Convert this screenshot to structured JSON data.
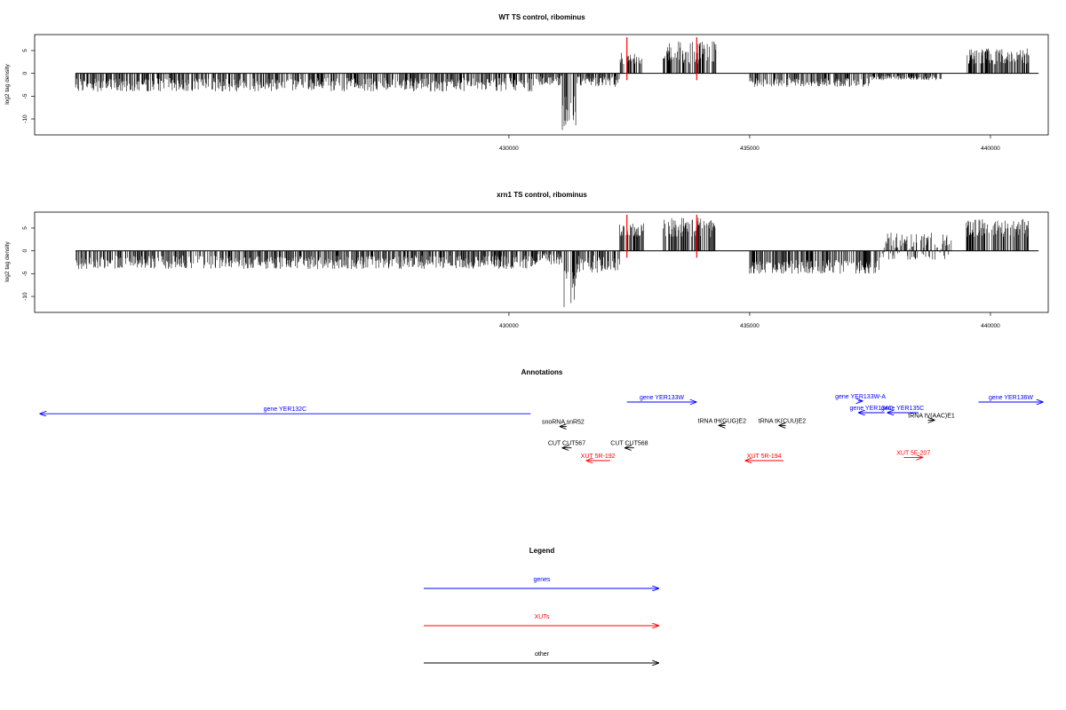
{
  "chart_data": [
    {
      "type": "bar",
      "title": "WT TS control, ribominus",
      "ylabel": "log2 tag density",
      "xlabel": "",
      "xlim": [
        420150,
        441200
      ],
      "ylim": [
        -13.5,
        8.5
      ],
      "x_ticks": [
        430000,
        435000,
        440000
      ],
      "x_tick_labels": [
        "430000",
        "435000",
        "440000"
      ],
      "y_ticks": [
        5,
        0,
        -5,
        -10
      ],
      "y_tick_labels": [
        "5",
        "0",
        "-5",
        "-10"
      ],
      "grid": false,
      "markers": [
        {
          "x": 432450,
          "color": "#ff0000"
        },
        {
          "x": 433900,
          "color": "#ff0000"
        }
      ],
      "density": {
        "x_range": [
          421000,
          441000
        ],
        "segments": [
          {
            "x0": 421000,
            "x1": 430500,
            "min": -4,
            "max": -1
          },
          {
            "x0": 430500,
            "x1": 431100,
            "min": -3,
            "max": -0.5
          },
          {
            "x0": 431100,
            "x1": 431400,
            "min": -12.5,
            "max": -4
          },
          {
            "x0": 431400,
            "x1": 432300,
            "min": -3,
            "max": -0.5
          },
          {
            "x0": 432300,
            "x1": 432800,
            "min": 2,
            "max": 4.5
          },
          {
            "x0": 433200,
            "x1": 434300,
            "min": 2,
            "max": 7
          },
          {
            "x0": 435000,
            "x1": 437500,
            "min": -3,
            "max": -1
          },
          {
            "x0": 437500,
            "x1": 439000,
            "min": -1.5,
            "max": -0.5
          },
          {
            "x0": 439500,
            "x1": 440800,
            "min": 2,
            "max": 5.5
          }
        ]
      }
    },
    {
      "type": "bar",
      "title": "xrn1 TS control, ribominus",
      "ylabel": "log2 tag density",
      "xlabel": "",
      "xlim": [
        420150,
        441200
      ],
      "ylim": [
        -13.5,
        8.5
      ],
      "x_ticks": [
        430000,
        435000,
        440000
      ],
      "x_tick_labels": [
        "430000",
        "435000",
        "440000"
      ],
      "y_ticks": [
        5,
        0,
        -5,
        -10
      ],
      "y_tick_labels": [
        "5",
        "0",
        "-5",
        "-10"
      ],
      "grid": false,
      "markers": [
        {
          "x": 432450,
          "color": "#ff0000"
        },
        {
          "x": 433900,
          "color": "#ff0000"
        }
      ],
      "density": {
        "x_range": [
          421000,
          441000
        ],
        "segments": [
          {
            "x0": 421000,
            "x1": 430500,
            "min": -4,
            "max": -1
          },
          {
            "x0": 430500,
            "x1": 431100,
            "min": -3,
            "max": -0.5
          },
          {
            "x0": 431100,
            "x1": 431400,
            "min": -12.5,
            "max": -4
          },
          {
            "x0": 431400,
            "x1": 432300,
            "min": -5,
            "max": -1
          },
          {
            "x0": 432300,
            "x1": 432800,
            "min": 3,
            "max": 6
          },
          {
            "x0": 433200,
            "x1": 434300,
            "min": 3,
            "max": 7.5
          },
          {
            "x0": 435000,
            "x1": 437700,
            "min": -5,
            "max": -2
          },
          {
            "x0": 437700,
            "x1": 439200,
            "min": -2,
            "max": 4
          },
          {
            "x0": 439500,
            "x1": 440800,
            "min": 3,
            "max": 7
          }
        ]
      }
    }
  ],
  "annotations": {
    "title": "Annotations",
    "items": [
      {
        "label": "gene YER132C",
        "start": 430450,
        "end": 420250,
        "row": 1.1,
        "category": "genes"
      },
      {
        "label": "gene YER133W",
        "start": 432450,
        "end": 433900,
        "row": 0,
        "category": "genes"
      },
      {
        "label": "gene YER133W-A",
        "start": 437250,
        "end": 437350,
        "row": -0.1,
        "category": "genes"
      },
      {
        "label": "gene YER134C",
        "start": 437800,
        "end": 437250,
        "row": 1,
        "category": "genes"
      },
      {
        "label": "gene YER135C",
        "start": 438500,
        "end": 437850,
        "row": 1,
        "category": "genes"
      },
      {
        "label": "gene YER136W",
        "start": 439750,
        "end": 441100,
        "row": 0,
        "category": "genes"
      },
      {
        "label": "snoRNA snR52",
        "start": 431200,
        "end": 431050,
        "row": 2.3,
        "category": "other"
      },
      {
        "label": "tRNA tH(GUG)E2",
        "start": 434500,
        "end": 434350,
        "row": 2.2,
        "category": "other"
      },
      {
        "label": "tRNA tK(CUU)E2",
        "start": 435750,
        "end": 435600,
        "row": 2.2,
        "category": "other"
      },
      {
        "label": "tRNA tV(AAC)E1",
        "start": 438700,
        "end": 438850,
        "row": 1.7,
        "category": "other"
      },
      {
        "label": "CUT CUT567",
        "start": 431300,
        "end": 431100,
        "row": 4.3,
        "category": "other"
      },
      {
        "label": "CUT CUT568",
        "start": 432600,
        "end": 432400,
        "row": 4.3,
        "category": "other"
      },
      {
        "label": "XUT 5R-192",
        "start": 432100,
        "end": 431600,
        "row": 5.5,
        "category": "XUTs"
      },
      {
        "label": "XUT 5R-194",
        "start": 435700,
        "end": 434900,
        "row": 5.5,
        "category": "XUTs"
      },
      {
        "label": "XUT 5F-207",
        "start": 438200,
        "end": 438600,
        "row": 5.2,
        "category": "XUTs"
      }
    ]
  },
  "legend": {
    "title": "Legend",
    "entries": [
      {
        "label": "genes",
        "color": "#0000ff"
      },
      {
        "label": "XUTs",
        "color": "#ff0000"
      },
      {
        "label": "other",
        "color": "#000000"
      }
    ]
  },
  "colors": {
    "genes": "#0000ff",
    "XUTs": "#ff0000",
    "other": "#000000",
    "marker": "#ff0000"
  }
}
